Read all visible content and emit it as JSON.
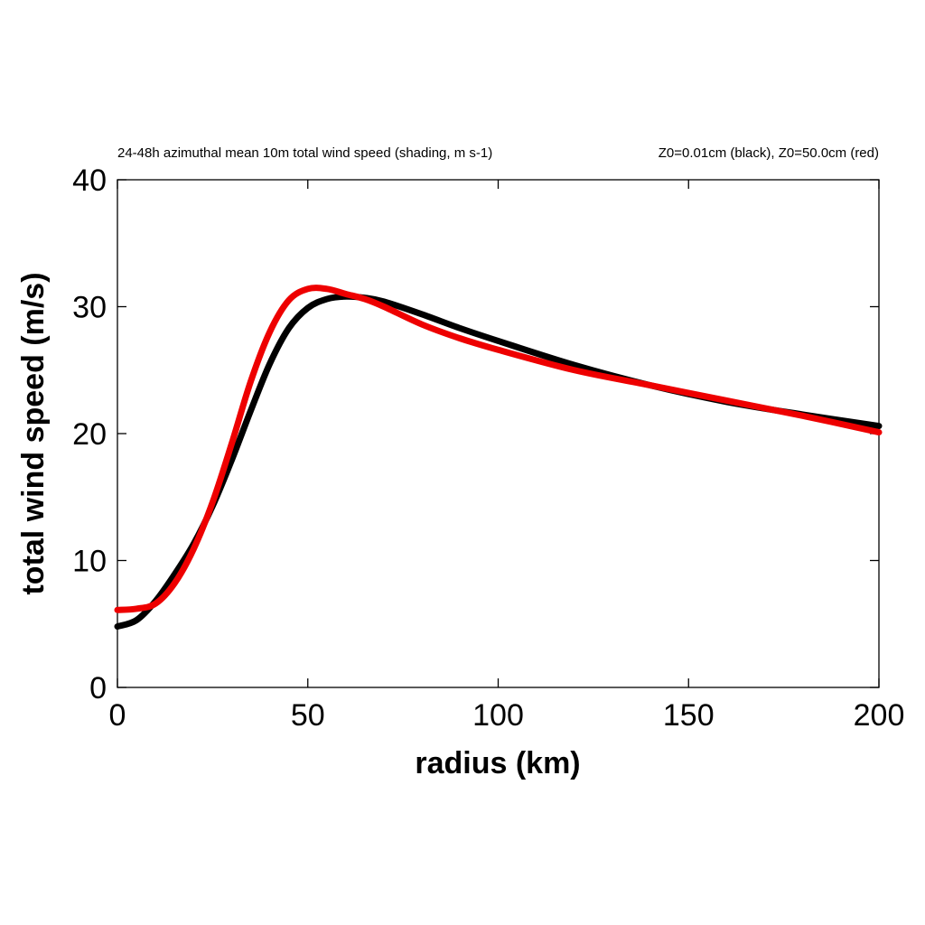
{
  "chart_data": {
    "type": "line",
    "title_left": "24-48h azimuthal mean 10m total wind speed (shading, m s-1)",
    "title_right": "Z0=0.01cm (black), Z0=50.0cm (red)",
    "xlabel": "radius (km)",
    "ylabel": "total wind speed (m/s)",
    "xlim": [
      0,
      200
    ],
    "ylim": [
      0,
      40
    ],
    "xticks": [
      "0",
      "50",
      "100",
      "150",
      "200"
    ],
    "yticks": [
      "0",
      "10",
      "20",
      "30",
      "40"
    ],
    "grid": false,
    "series": [
      {
        "color": "#000000",
        "x": [
          0,
          5,
          10,
          15,
          20,
          25,
          30,
          35,
          40,
          45,
          50,
          55,
          60,
          65,
          70,
          80,
          90,
          100,
          120,
          140,
          160,
          180,
          200
        ],
        "y": [
          4.8,
          5.3,
          6.8,
          8.9,
          11.3,
          14.3,
          17.9,
          21.8,
          25.5,
          28.3,
          29.9,
          30.6,
          30.8,
          30.7,
          30.4,
          29.4,
          28.3,
          27.3,
          25.4,
          23.8,
          22.5,
          21.5,
          20.6
        ]
      },
      {
        "color": "#ee0000",
        "x": [
          0,
          5,
          10,
          15,
          20,
          25,
          30,
          35,
          40,
          45,
          50,
          55,
          60,
          65,
          70,
          80,
          90,
          100,
          120,
          140,
          160,
          180,
          200
        ],
        "y": [
          6.1,
          6.2,
          6.6,
          8.2,
          10.9,
          14.6,
          19.2,
          24.1,
          28.0,
          30.5,
          31.4,
          31.4,
          31.0,
          30.6,
          30.0,
          28.6,
          27.5,
          26.6,
          25.0,
          23.8,
          22.6,
          21.4,
          20.1
        ]
      }
    ]
  }
}
